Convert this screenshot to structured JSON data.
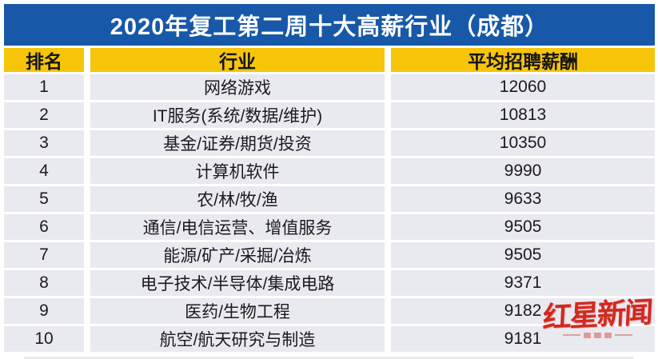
{
  "chart_data": {
    "type": "table",
    "title": "2020年复工第二周十大高薪行业（成都）",
    "columns": [
      "排名",
      "行业",
      "平均招聘薪酬"
    ],
    "rows": [
      [
        1,
        "网络游戏",
        12060
      ],
      [
        2,
        "IT服务(系统/数据/维护)",
        10813
      ],
      [
        3,
        "基金/证券/期货/投资",
        10350
      ],
      [
        4,
        "计算机软件",
        9990
      ],
      [
        5,
        "农/林/牧/渔",
        9633
      ],
      [
        6,
        "通信/电信运营、增值服务",
        9505
      ],
      [
        7,
        "能源/矿产/采掘/冶炼",
        9505
      ],
      [
        8,
        "电子技术/半导体/集成电路",
        9371
      ],
      [
        9,
        "医药/生物工程",
        9182
      ],
      [
        10,
        "航空/航天研究与制造",
        9181
      ]
    ],
    "layout_hints": {
      "title_position": "top-banner",
      "grid": "cell-blocks-with-white-gaps"
    }
  },
  "watermark": {
    "logo": "红星新闻"
  },
  "colors": {
    "title_bg": "#1758A8",
    "title_text": "#FFFFFF",
    "header_bg": "#F6C50A",
    "header_text": "#141414",
    "row_bg": "#E9E9F0",
    "row_text": "#1B1B1B",
    "logo_red": "#D2281E",
    "background": "#FFFFFF"
  }
}
